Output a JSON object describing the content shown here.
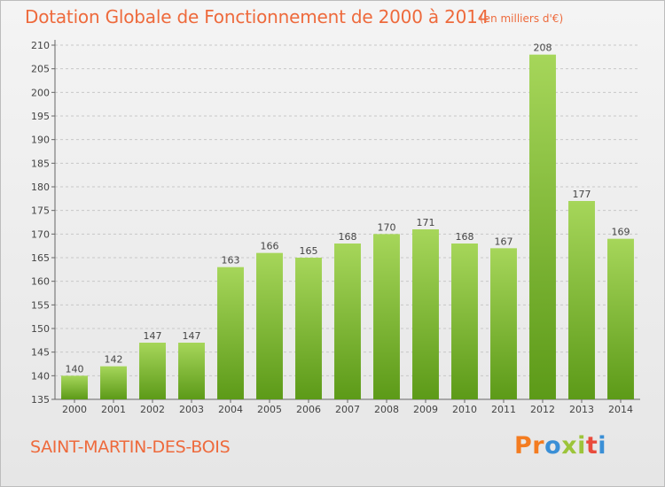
{
  "header": {
    "title": "Dotation Globale de Fonctionnement de 2000 à 2014",
    "unit": "(en milliers d'€)"
  },
  "footer": {
    "place_name": "SAINT-MARTIN-DES-BOIS",
    "logo_text": "Proxiti"
  },
  "colors": {
    "accent": "#ee6a3c",
    "bar_top": "#a6d65a",
    "bar_bottom": "#5c9a18",
    "gridline": "#c8c8c8",
    "logo_letters": [
      "#f47c20",
      "#f47c20",
      "#3a8fd6",
      "#9cc43a",
      "#9cc43a",
      "#e94b3c",
      "#3a8fd6"
    ]
  },
  "chart_data": {
    "type": "bar",
    "title": "Dotation Globale de Fonctionnement de 2000 à 2014",
    "subtitle": "(en milliers d'€)",
    "xlabel": "",
    "ylabel": "",
    "ylim": [
      135,
      210
    ],
    "y_ticks": [
      135,
      140,
      145,
      150,
      155,
      160,
      165,
      170,
      175,
      180,
      185,
      190,
      195,
      200,
      205,
      210
    ],
    "grid": true,
    "categories": [
      "2000",
      "2001",
      "2002",
      "2003",
      "2004",
      "2005",
      "2006",
      "2007",
      "2008",
      "2009",
      "2010",
      "2011",
      "2012",
      "2013",
      "2014"
    ],
    "values": [
      140,
      142,
      147,
      147,
      163,
      166,
      165,
      168,
      170,
      171,
      168,
      167,
      208,
      177,
      169
    ]
  }
}
